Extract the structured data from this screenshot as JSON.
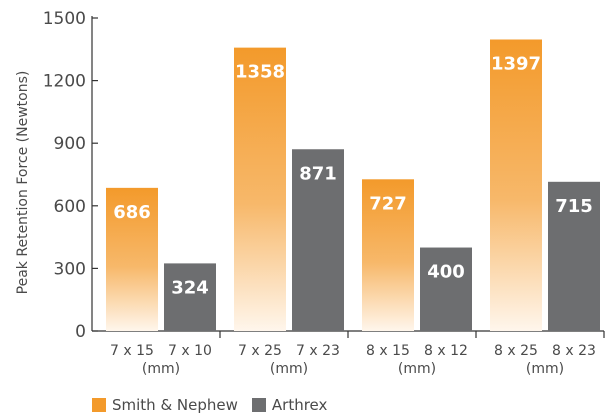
{
  "chart_data": {
    "type": "bar",
    "title": "",
    "xlabel": "",
    "ylabel": "Peak Retention Force (Newtons)",
    "ylim": [
      0,
      1500
    ],
    "yticks": [
      0,
      300,
      600,
      900,
      1200,
      1500
    ],
    "groups": [
      {
        "labels": [
          "7 x 15",
          "7 x 10"
        ],
        "unit": "(mm)"
      },
      {
        "labels": [
          "7 x 25",
          "7 x 23"
        ],
        "unit": "(mm)"
      },
      {
        "labels": [
          "8 x 15",
          "8 x 12"
        ],
        "unit": "(mm)"
      },
      {
        "labels": [
          "8 x 25",
          "8 x 23"
        ],
        "unit": "(mm)"
      }
    ],
    "series": [
      {
        "name": "Smith & Nephew",
        "color": "#f39a2b",
        "values": [
          686,
          1358,
          727,
          1397
        ]
      },
      {
        "name": "Arthrex",
        "color": "#6d6e70",
        "values": [
          324,
          871,
          400,
          715
        ]
      }
    ],
    "legend_position": "bottom-left"
  }
}
